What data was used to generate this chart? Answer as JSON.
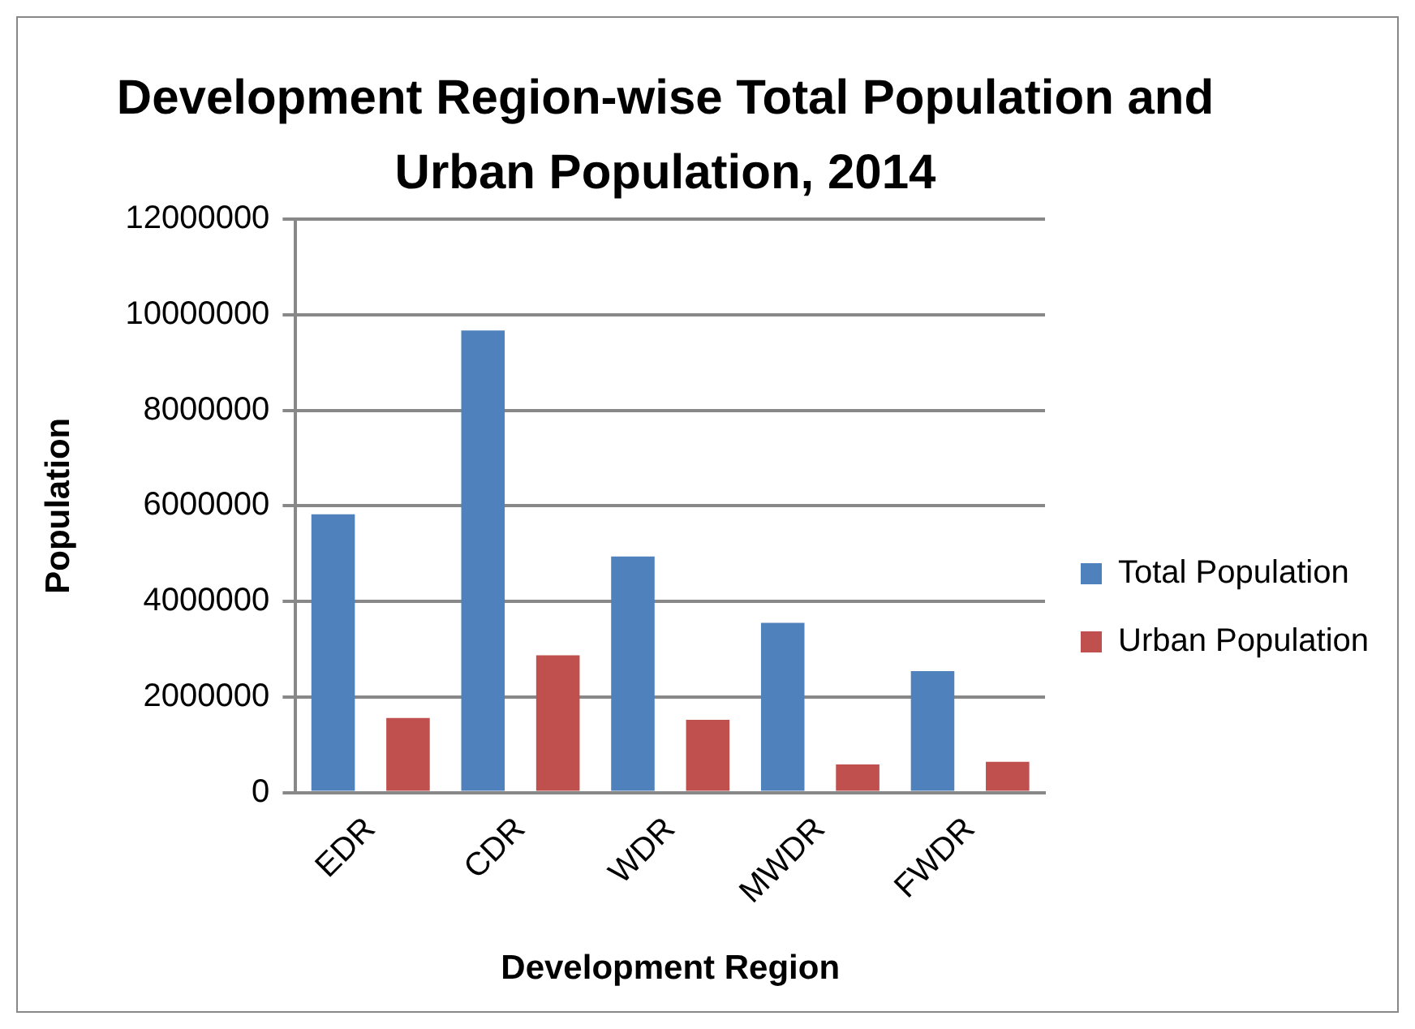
{
  "chart_data": {
    "type": "bar",
    "title": "Development Region-wise Total Population and Urban Population, 2014",
    "xlabel": "Development Region",
    "ylabel": "Population",
    "categories": [
      "EDR",
      "CDR",
      "WDR",
      "MWDR",
      "FWDR"
    ],
    "series": [
      {
        "name": "Total Population",
        "color": "#4f81bd",
        "values": [
          5820000,
          9670000,
          4940000,
          3550000,
          2540000
        ]
      },
      {
        "name": "Urban Population",
        "color": "#c0504d",
        "values": [
          1560000,
          2870000,
          1520000,
          585000,
          640000
        ]
      }
    ],
    "ylim": [
      0,
      12000000
    ],
    "yticks": [
      0,
      2000000,
      4000000,
      6000000,
      8000000,
      10000000,
      12000000
    ],
    "grid": "y",
    "legend": "right"
  }
}
